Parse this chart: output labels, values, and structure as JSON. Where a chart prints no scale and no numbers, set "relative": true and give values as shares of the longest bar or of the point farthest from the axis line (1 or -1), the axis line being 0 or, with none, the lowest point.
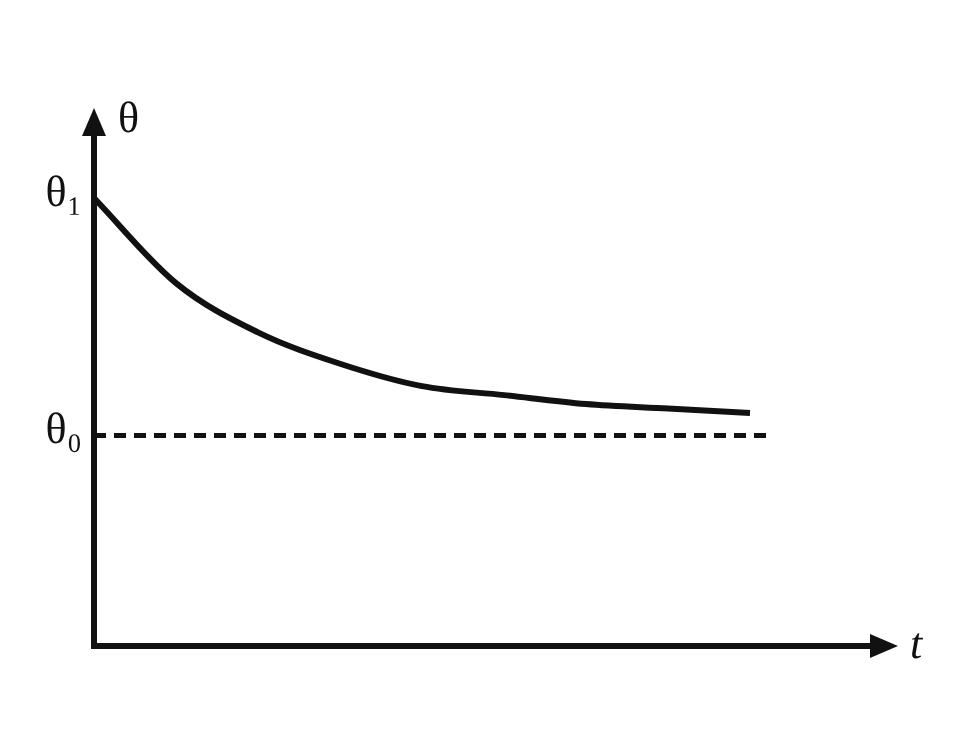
{
  "chart_data": {
    "type": "line",
    "relative": true,
    "xlabel": "t",
    "ylabel": "θ",
    "categories": [
      null,
      null,
      null,
      null,
      null,
      null,
      null,
      null,
      null,
      null,
      null
    ],
    "series": [
      {
        "color": "#111111",
        "values": [
          1,
          0.81,
          0.7,
          0.63,
          0.58,
          0.56,
          0.54,
          0.53,
          0.52,
          null,
          null
        ]
      }
    ],
    "ref_lines": [
      {
        "axis": "y",
        "value": 0.47,
        "label": "θ₀",
        "line_style": "dashed",
        "color": "#111111"
      }
    ],
    "annotations": [
      "θ₁"
    ],
    "marker": "none",
    "line_style": "solid",
    "legend": false
  }
}
